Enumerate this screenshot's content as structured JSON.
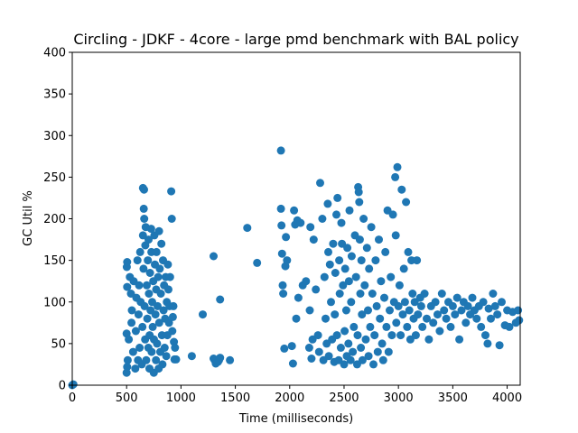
{
  "chart_data": {
    "type": "scatter",
    "title": "Circling - JDKF - 4core -  large pmd benchmark with BAL policy",
    "xlabel": "Time (milliseconds)",
    "ylabel": "GC Util %",
    "xlim": [
      0,
      4120
    ],
    "ylim": [
      0,
      400
    ],
    "xticks": [
      0,
      500,
      1000,
      1500,
      2000,
      2500,
      3000,
      3500,
      4000
    ],
    "yticks": [
      0,
      50,
      100,
      150,
      200,
      250,
      300,
      350,
      400
    ],
    "grid": false,
    "marker_color": "#1f77b4",
    "points": [
      [
        0,
        0
      ],
      [
        10,
        1
      ],
      [
        500,
        15
      ],
      [
        505,
        22
      ],
      [
        510,
        30
      ],
      [
        500,
        62
      ],
      [
        505,
        118
      ],
      [
        502,
        142
      ],
      [
        505,
        148
      ],
      [
        520,
        55
      ],
      [
        530,
        130
      ],
      [
        545,
        75
      ],
      [
        540,
        110
      ],
      [
        548,
        90
      ],
      [
        560,
        40
      ],
      [
        565,
        125
      ],
      [
        580,
        20
      ],
      [
        585,
        65
      ],
      [
        590,
        105
      ],
      [
        600,
        150
      ],
      [
        605,
        30
      ],
      [
        610,
        85
      ],
      [
        615,
        120
      ],
      [
        620,
        45
      ],
      [
        625,
        160
      ],
      [
        630,
        100
      ],
      [
        640,
        25
      ],
      [
        645,
        70
      ],
      [
        650,
        180
      ],
      [
        655,
        140
      ],
      [
        650,
        237
      ],
      [
        660,
        235
      ],
      [
        658,
        212
      ],
      [
        662,
        200
      ],
      [
        665,
        95
      ],
      [
        670,
        55
      ],
      [
        672,
        168
      ],
      [
        675,
        190
      ],
      [
        680,
        30
      ],
      [
        685,
        120
      ],
      [
        690,
        80
      ],
      [
        695,
        150
      ],
      [
        700,
        45
      ],
      [
        702,
        175
      ],
      [
        705,
        110
      ],
      [
        710,
        20
      ],
      [
        712,
        60
      ],
      [
        715,
        135
      ],
      [
        720,
        90
      ],
      [
        725,
        188
      ],
      [
        728,
        160
      ],
      [
        730,
        40
      ],
      [
        735,
        100
      ],
      [
        740,
        70
      ],
      [
        745,
        125
      ],
      [
        750,
        15
      ],
      [
        752,
        55
      ],
      [
        755,
        180
      ],
      [
        760,
        145
      ],
      [
        765,
        85
      ],
      [
        770,
        30
      ],
      [
        772,
        115
      ],
      [
        775,
        160
      ],
      [
        780,
        50
      ],
      [
        785,
        95
      ],
      [
        790,
        130
      ],
      [
        795,
        20
      ],
      [
        798,
        185
      ],
      [
        800,
        75
      ],
      [
        805,
        140
      ],
      [
        810,
        40
      ],
      [
        815,
        110
      ],
      [
        820,
        170
      ],
      [
        825,
        60
      ],
      [
        830,
        25
      ],
      [
        835,
        150
      ],
      [
        840,
        90
      ],
      [
        845,
        120
      ],
      [
        850,
        45
      ],
      [
        855,
        80
      ],
      [
        860,
        130
      ],
      [
        865,
        35
      ],
      [
        870,
        100
      ],
      [
        875,
        60
      ],
      [
        880,
        145
      ],
      [
        885,
        115
      ],
      [
        890,
        75
      ],
      [
        895,
        95
      ],
      [
        900,
        130
      ],
      [
        910,
        233
      ],
      [
        915,
        200
      ],
      [
        920,
        65
      ],
      [
        925,
        82
      ],
      [
        930,
        95
      ],
      [
        935,
        52
      ],
      [
        940,
        31
      ],
      [
        945,
        45
      ],
      [
        955,
        31
      ],
      [
        1100,
        35
      ],
      [
        1200,
        85
      ],
      [
        1300,
        155
      ],
      [
        1300,
        32
      ],
      [
        1310,
        30
      ],
      [
        1320,
        26
      ],
      [
        1340,
        28
      ],
      [
        1350,
        30
      ],
      [
        1360,
        103
      ],
      [
        1360,
        33
      ],
      [
        1450,
        30
      ],
      [
        1610,
        189
      ],
      [
        1700,
        147
      ],
      [
        1920,
        282
      ],
      [
        1920,
        212
      ],
      [
        1925,
        192
      ],
      [
        1930,
        158
      ],
      [
        1935,
        120
      ],
      [
        1940,
        110
      ],
      [
        1950,
        44
      ],
      [
        1960,
        143
      ],
      [
        1965,
        178
      ],
      [
        1975,
        150
      ],
      [
        2020,
        47
      ],
      [
        2030,
        26
      ],
      [
        2040,
        210
      ],
      [
        2050,
        193
      ],
      [
        2060,
        80
      ],
      [
        2070,
        198
      ],
      [
        2080,
        105
      ],
      [
        2100,
        195
      ],
      [
        2120,
        120
      ],
      [
        2150,
        125
      ],
      [
        2180,
        45
      ],
      [
        2185,
        90
      ],
      [
        2190,
        190
      ],
      [
        2200,
        32
      ],
      [
        2210,
        55
      ],
      [
        2220,
        175
      ],
      [
        2240,
        115
      ],
      [
        2260,
        60
      ],
      [
        2270,
        40
      ],
      [
        2280,
        243
      ],
      [
        2300,
        200
      ],
      [
        2310,
        30
      ],
      [
        2320,
        130
      ],
      [
        2330,
        80
      ],
      [
        2340,
        50
      ],
      [
        2350,
        218
      ],
      [
        2355,
        160
      ],
      [
        2360,
        35
      ],
      [
        2370,
        145
      ],
      [
        2380,
        100
      ],
      [
        2390,
        55
      ],
      [
        2400,
        170
      ],
      [
        2410,
        28
      ],
      [
        2415,
        85
      ],
      [
        2420,
        135
      ],
      [
        2430,
        205
      ],
      [
        2435,
        60
      ],
      [
        2440,
        225
      ],
      [
        2450,
        30
      ],
      [
        2455,
        150
      ],
      [
        2460,
        110
      ],
      [
        2470,
        45
      ],
      [
        2475,
        195
      ],
      [
        2480,
        170
      ],
      [
        2490,
        120
      ],
      [
        2500,
        25
      ],
      [
        2505,
        65
      ],
      [
        2510,
        140
      ],
      [
        2520,
        90
      ],
      [
        2525,
        35
      ],
      [
        2530,
        165
      ],
      [
        2540,
        50
      ],
      [
        2545,
        125
      ],
      [
        2550,
        210
      ],
      [
        2560,
        30
      ],
      [
        2565,
        100
      ],
      [
        2570,
        155
      ],
      [
        2580,
        40
      ],
      [
        2590,
        70
      ],
      [
        2600,
        180
      ],
      [
        2610,
        130
      ],
      [
        2620,
        25
      ],
      [
        2625,
        60
      ],
      [
        2630,
        238
      ],
      [
        2635,
        232
      ],
      [
        2640,
        220
      ],
      [
        2645,
        175
      ],
      [
        2650,
        110
      ],
      [
        2655,
        45
      ],
      [
        2660,
        150
      ],
      [
        2665,
        85
      ],
      [
        2670,
        30
      ],
      [
        2680,
        200
      ],
      [
        2690,
        120
      ],
      [
        2700,
        55
      ],
      [
        2710,
        165
      ],
      [
        2720,
        90
      ],
      [
        2725,
        35
      ],
      [
        2730,
        140
      ],
      [
        2740,
        70
      ],
      [
        2750,
        190
      ],
      [
        2760,
        110
      ],
      [
        2770,
        25
      ],
      [
        2780,
        60
      ],
      [
        2790,
        150
      ],
      [
        2800,
        95
      ],
      [
        2810,
        40
      ],
      [
        2820,
        175
      ],
      [
        2830,
        80
      ],
      [
        2840,
        125
      ],
      [
        2850,
        50
      ],
      [
        2860,
        30
      ],
      [
        2870,
        105
      ],
      [
        2880,
        160
      ],
      [
        2890,
        70
      ],
      [
        2900,
        210
      ],
      [
        2910,
        40
      ],
      [
        2920,
        90
      ],
      [
        2930,
        130
      ],
      [
        2940,
        60
      ],
      [
        2950,
        205
      ],
      [
        2960,
        100
      ],
      [
        2970,
        250
      ],
      [
        2975,
        180
      ],
      [
        2980,
        75
      ],
      [
        2990,
        262
      ],
      [
        3000,
        95
      ],
      [
        3010,
        120
      ],
      [
        3020,
        60
      ],
      [
        3030,
        235
      ],
      [
        3040,
        85
      ],
      [
        3050,
        140
      ],
      [
        3060,
        100
      ],
      [
        3070,
        220
      ],
      [
        3080,
        70
      ],
      [
        3090,
        160
      ],
      [
        3100,
        90
      ],
      [
        3110,
        55
      ],
      [
        3120,
        150
      ],
      [
        3130,
        110
      ],
      [
        3140,
        80
      ],
      [
        3150,
        100
      ],
      [
        3160,
        60
      ],
      [
        3170,
        150
      ],
      [
        3180,
        85
      ],
      [
        3200,
        105
      ],
      [
        3210,
        95
      ],
      [
        3220,
        70
      ],
      [
        3240,
        110
      ],
      [
        3260,
        80
      ],
      [
        3280,
        55
      ],
      [
        3300,
        95
      ],
      [
        3320,
        75
      ],
      [
        3340,
        100
      ],
      [
        3360,
        85
      ],
      [
        3380,
        65
      ],
      [
        3400,
        110
      ],
      [
        3420,
        90
      ],
      [
        3440,
        80
      ],
      [
        3460,
        100
      ],
      [
        3480,
        70
      ],
      [
        3500,
        95
      ],
      [
        3520,
        85
      ],
      [
        3540,
        105
      ],
      [
        3560,
        55
      ],
      [
        3580,
        90
      ],
      [
        3600,
        100
      ],
      [
        3620,
        75
      ],
      [
        3640,
        95
      ],
      [
        3660,
        85
      ],
      [
        3680,
        105
      ],
      [
        3700,
        90
      ],
      [
        3720,
        80
      ],
      [
        3740,
        95
      ],
      [
        3760,
        70
      ],
      [
        3780,
        100
      ],
      [
        3800,
        60
      ],
      [
        3820,
        50
      ],
      [
        3830,
        92
      ],
      [
        3850,
        80
      ],
      [
        3870,
        110
      ],
      [
        3890,
        95
      ],
      [
        3910,
        85
      ],
      [
        3930,
        48
      ],
      [
        3950,
        100
      ],
      [
        3980,
        72
      ],
      [
        4000,
        90
      ],
      [
        4020,
        70
      ],
      [
        4050,
        88
      ],
      [
        4080,
        75
      ],
      [
        4100,
        90
      ],
      [
        4110,
        78
      ]
    ]
  }
}
